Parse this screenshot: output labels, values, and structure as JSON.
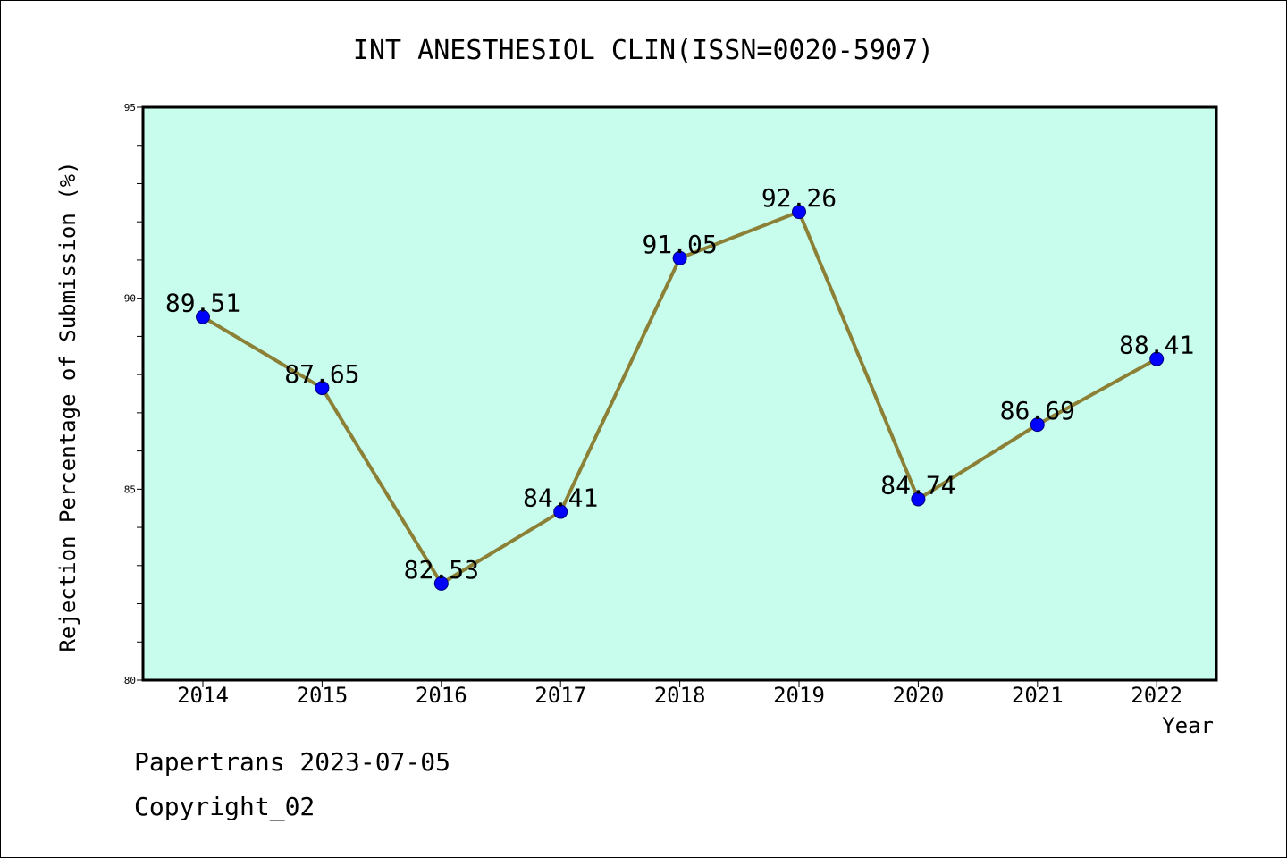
{
  "chart_data": {
    "type": "line",
    "title": "INT ANESTHESIOL CLIN(ISSN=0020-5907)",
    "xlabel": "Year",
    "ylabel": "Rejection Percentage of Submission (%)",
    "categories": [
      "2014",
      "2015",
      "2016",
      "2017",
      "2018",
      "2019",
      "2020",
      "2021",
      "2022"
    ],
    "series": [
      {
        "values": [
          89.51,
          87.65,
          82.53,
          84.41,
          91.05,
          92.26,
          84.74,
          86.69,
          88.41
        ],
        "labels": [
          "89.51",
          "87.65",
          "82.53",
          "84.41",
          "91.05",
          "92.26",
          "84.74",
          "86.69",
          "88.41"
        ]
      }
    ],
    "ylim": [
      80,
      95
    ],
    "yticks": [
      "80",
      "85",
      "90",
      "95"
    ],
    "grid": false,
    "legend": "none",
    "colors": {
      "plot_background": "#c8fcec",
      "line": "#8b8036",
      "marker": "#0000ff",
      "marker_edge": "#00007a"
    }
  },
  "footer": {
    "line1": "Papertrans 2023-07-05",
    "line2": "Copyright_02"
  }
}
